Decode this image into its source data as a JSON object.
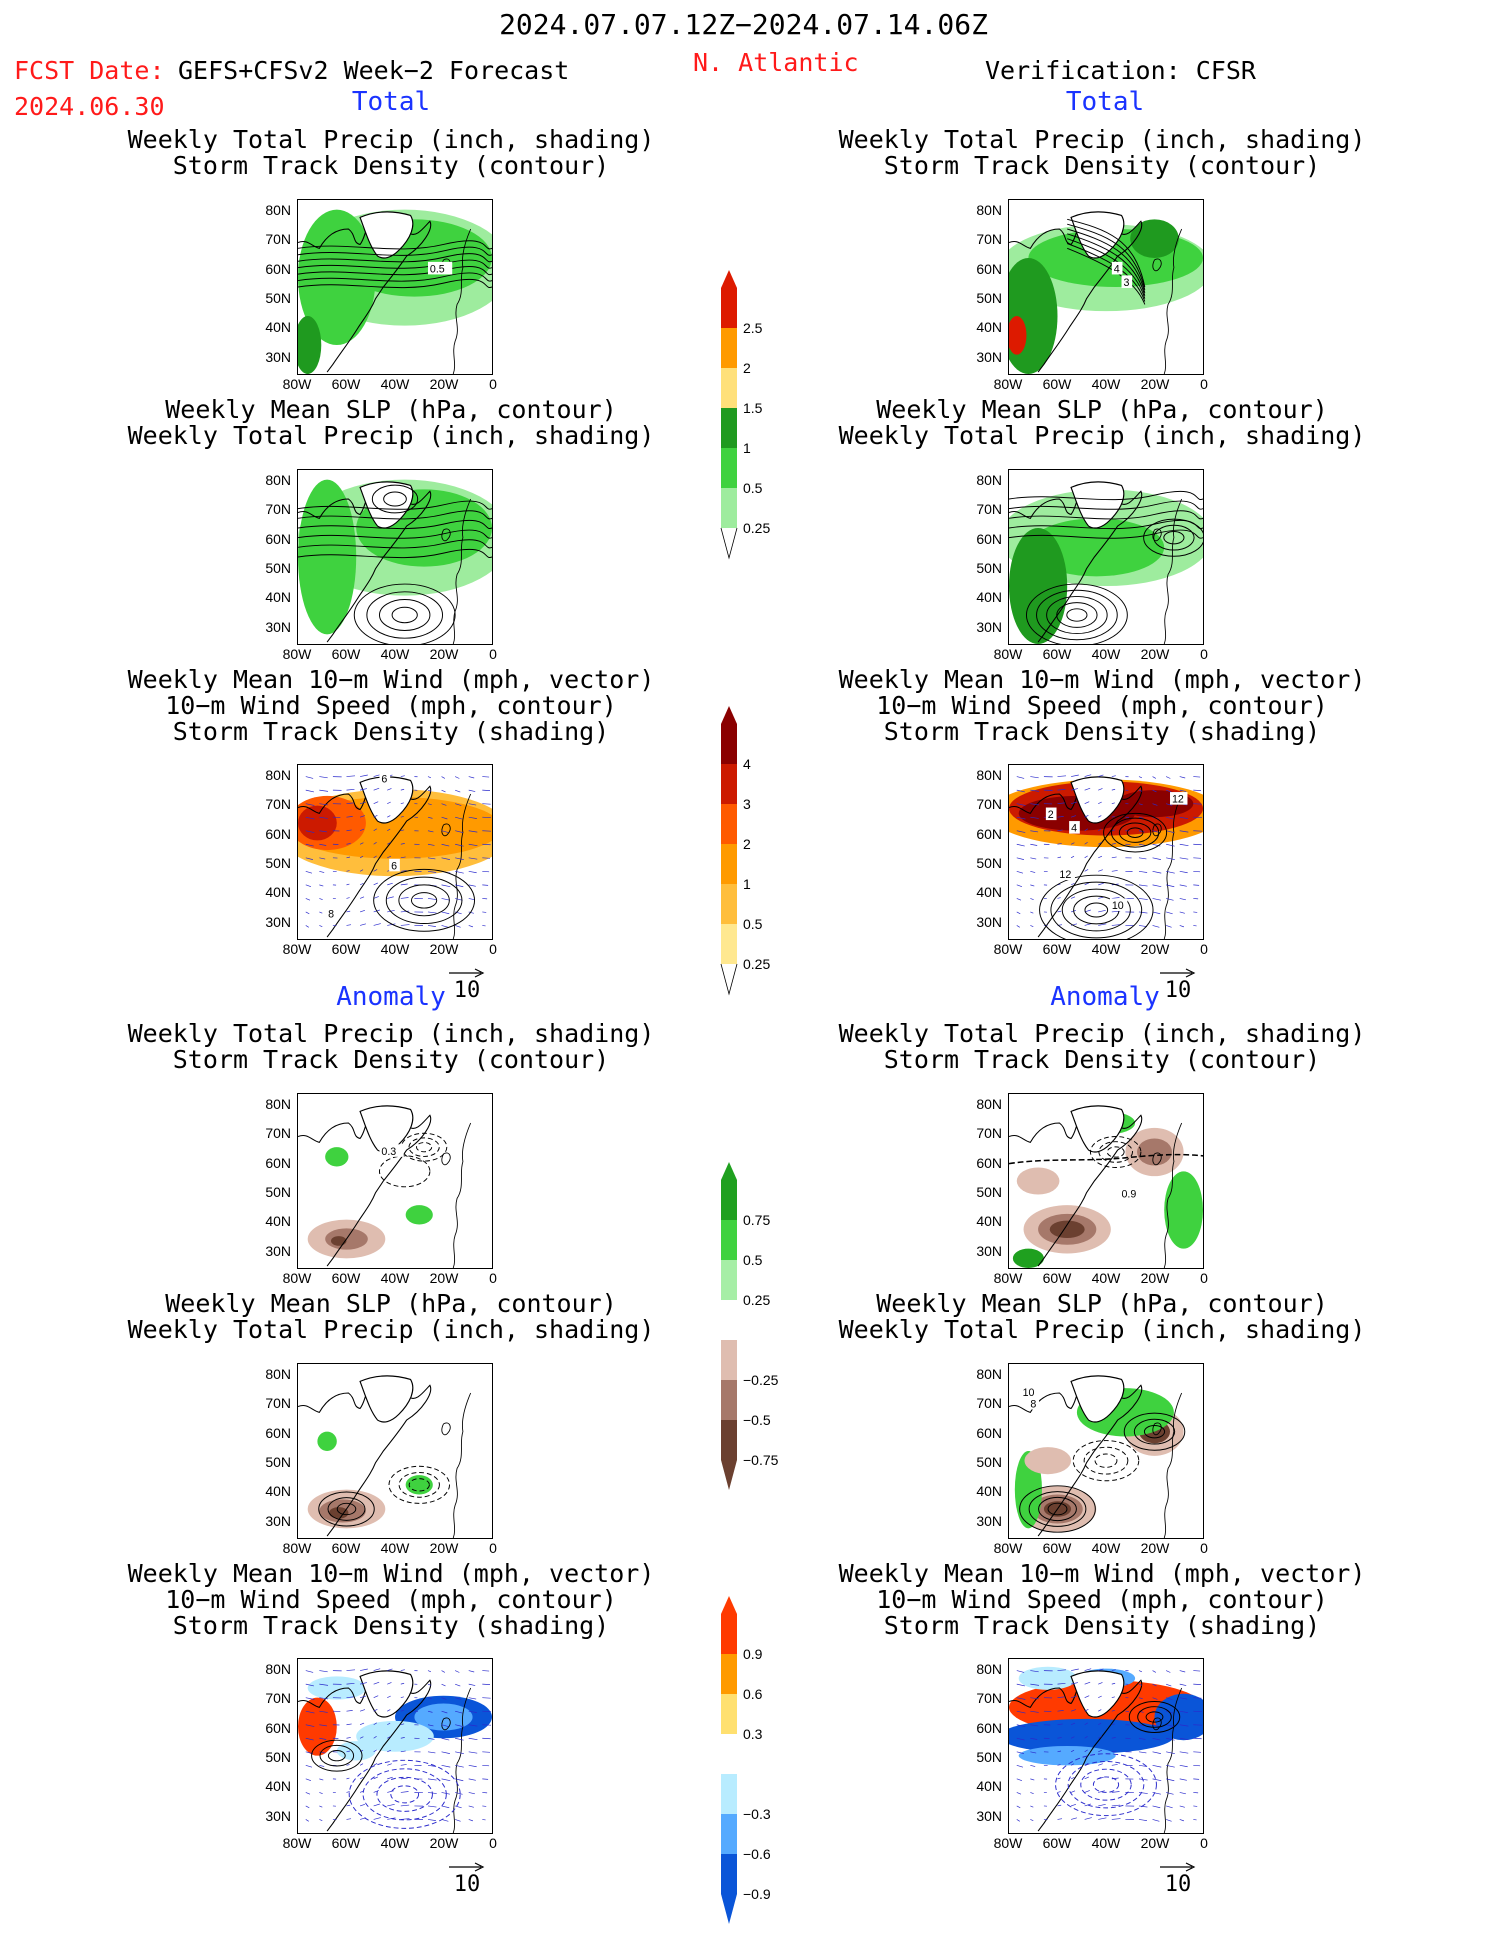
{
  "header": {
    "date_range": "2024.07.07.12Z−2024.07.14.06Z",
    "fcst_label": "FCST Date:",
    "model": "GEFS+CFSv2 Week−2 Forecast",
    "fcst_date": "2024.06.30",
    "region": "N. Atlantic",
    "verification": "Verification: CFSR"
  },
  "sections": {
    "total": "Total",
    "anomaly": "Anomaly"
  },
  "titles": {
    "precip_track": [
      "Weekly Total Precip (inch, shading)",
      "Storm Track Density (contour)"
    ],
    "slp_precip": [
      "Weekly Mean SLP (hPa, contour)",
      "Weekly Total Precip (inch, shading)"
    ],
    "wind_track": [
      "Weekly Mean 10−m Wind (mph, vector)",
      "10−m Wind Speed (mph, contour)",
      "Storm Track Density (shading)"
    ]
  },
  "axes": {
    "lat_labels": [
      "80N",
      "70N",
      "60N",
      "50N",
      "40N",
      "30N"
    ],
    "lon_labels": [
      "80W",
      "60W",
      "40W",
      "20W",
      "0"
    ]
  },
  "vector_ref": "10",
  "colorbars": {
    "total_precip": {
      "ticks": [
        "2.5",
        "2",
        "1.5",
        "1",
        "0.5",
        "0.25"
      ],
      "colors": [
        "#dd1a00",
        "#ff9a00",
        "#ffe07a",
        "#1f9a1f",
        "#3fd23f",
        "#9eec9e"
      ]
    },
    "total_track": {
      "ticks": [
        "4",
        "3",
        "2",
        "1",
        "0.5",
        "0.25"
      ],
      "colors": [
        "#8a0000",
        "#cc1a00",
        "#ff5a00",
        "#ff9a00",
        "#ffbe3c",
        "#ffe890"
      ]
    },
    "anom_precip": {
      "ticks": [
        "0.75",
        "0.5",
        "0.25",
        "−0.25",
        "−0.5",
        "−0.75"
      ],
      "colors": [
        "#1fa01f",
        "#3fd23f",
        "#a6eea6",
        "#ffffff",
        "#dfbdb0",
        "#a6786a",
        "#6b4030"
      ]
    },
    "anom_track": {
      "ticks": [
        "0.9",
        "0.6",
        "0.3",
        "−0.3",
        "−0.6",
        "−0.9"
      ],
      "colors": [
        "#ff3a00",
        "#ff9a00",
        "#ffe070",
        "#ffffff",
        "#b8ecff",
        "#55aaff",
        "#0a55d8"
      ]
    }
  },
  "contour_labels": {
    "fc_precip_track": [
      "0.5"
    ],
    "ob_precip_track": [
      "4",
      "3"
    ],
    "fc_wind": [
      "6",
      "6",
      "8"
    ],
    "ob_wind": [
      "2",
      "4",
      "12",
      "12",
      "10"
    ],
    "fc_anom_precip_track": [
      "0.3"
    ],
    "ob_anom_precip_track": [
      "0.9"
    ],
    "ob_anom_slp": [
      "10",
      "8"
    ]
  }
}
